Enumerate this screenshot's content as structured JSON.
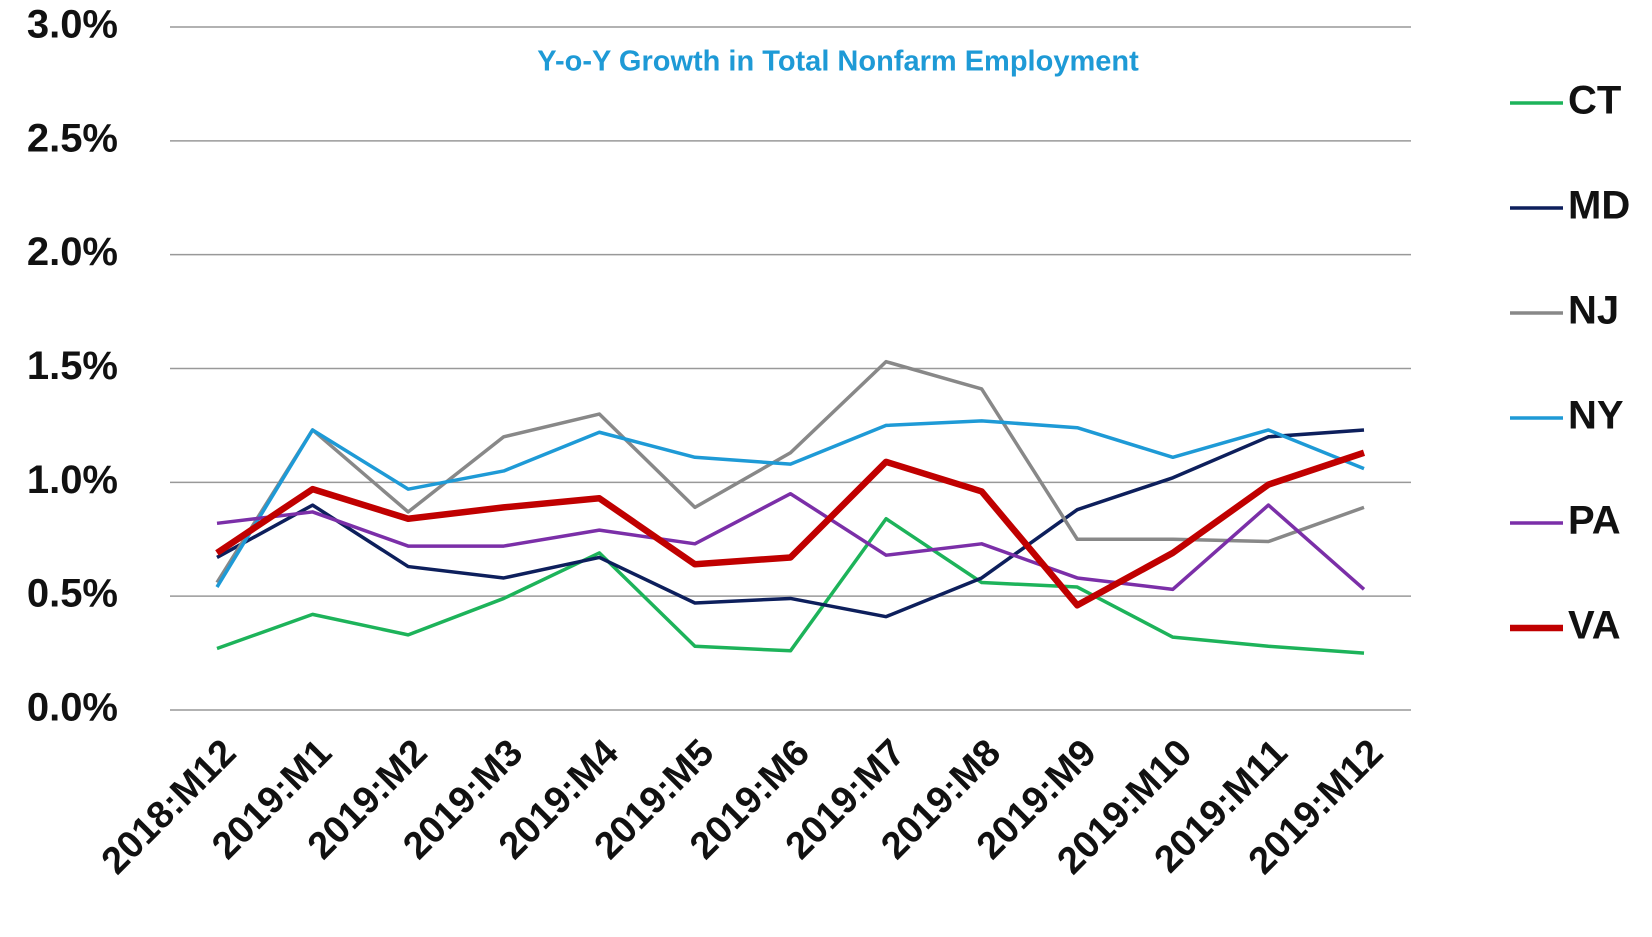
{
  "chart_data": {
    "type": "line",
    "title": "Y-o-Y Growth in Total Nonfarm Employment",
    "categories": [
      "2018:M12",
      "2019:M1",
      "2019:M2",
      "2019:M3",
      "2019:M4",
      "2019:M5",
      "2019:M6",
      "2019:M7",
      "2019:M8",
      "2019:M9",
      "2019:M10",
      "2019:M11",
      "2019:M12"
    ],
    "series": [
      {
        "name": "CT",
        "color": "#1db35a",
        "values": [
          0.27,
          0.42,
          0.33,
          0.49,
          0.69,
          0.28,
          0.26,
          0.84,
          0.56,
          0.54,
          0.32,
          0.28,
          0.25
        ]
      },
      {
        "name": "MD",
        "color": "#0d1f5c",
        "values": [
          0.67,
          0.9,
          0.63,
          0.58,
          0.67,
          0.47,
          0.49,
          0.41,
          0.58,
          0.88,
          1.02,
          1.2,
          1.23
        ]
      },
      {
        "name": "NJ",
        "color": "#888888",
        "values": [
          0.56,
          1.23,
          0.87,
          1.2,
          1.3,
          0.89,
          1.13,
          1.53,
          1.41,
          0.75,
          0.75,
          0.74,
          0.89
        ]
      },
      {
        "name": "NY",
        "color": "#1e9ad6",
        "values": [
          0.54,
          1.23,
          0.97,
          1.05,
          1.22,
          1.11,
          1.08,
          1.25,
          1.27,
          1.24,
          1.11,
          1.23,
          1.06
        ]
      },
      {
        "name": "PA",
        "color": "#7b2fa8",
        "values": [
          0.82,
          0.87,
          0.72,
          0.72,
          0.79,
          0.73,
          0.95,
          0.68,
          0.73,
          0.58,
          0.53,
          0.9,
          0.53
        ]
      },
      {
        "name": "VA",
        "color": "#c00000",
        "values": [
          0.69,
          0.97,
          0.84,
          0.89,
          0.93,
          0.64,
          0.67,
          1.09,
          0.96,
          0.46,
          0.69,
          0.99,
          1.13
        ]
      }
    ],
    "ylim": [
      0,
      3
    ],
    "yticks": [
      {
        "value": 0,
        "label": "0.0%"
      },
      {
        "value": 0.5,
        "label": "0.5%"
      },
      {
        "value": 1,
        "label": "1.0%"
      },
      {
        "value": 1.5,
        "label": "1.5%"
      },
      {
        "value": 2,
        "label": "2.0%"
      },
      {
        "value": 2.5,
        "label": "2.5%"
      },
      {
        "value": 3,
        "label": "3.0%"
      }
    ],
    "grid": true,
    "legend": "right"
  }
}
